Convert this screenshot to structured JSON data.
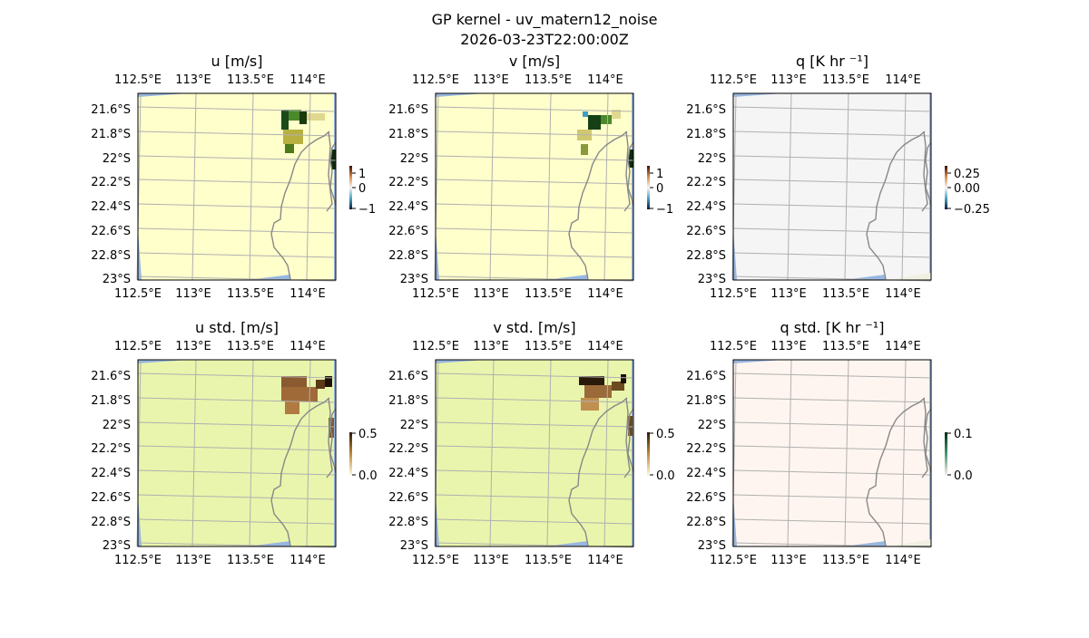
{
  "figure": {
    "title_line1": "GP kernel - uv_matern12_noise",
    "title_line2": "2026-03-23T22:00:00Z"
  },
  "chart_data": [
    {
      "type": "heatmap",
      "title": "u [m/s]",
      "panel": "u",
      "xticks": [
        "112.5°E",
        "113°E",
        "113.5°E",
        "114°E"
      ],
      "yticks": [
        "21.6°S",
        "21.8°S",
        "22°S",
        "22.2°S",
        "22.4°S",
        "22.6°S",
        "22.8°S",
        "23°S"
      ],
      "colorbar": {
        "ticks": [
          "1",
          "0",
          "−1"
        ],
        "range": [
          -1,
          1
        ]
      },
      "background_color": "#ffffcc",
      "ylim": [
        -23.0,
        -21.5
      ],
      "xlim": [
        112.4,
        114.2
      ]
    },
    {
      "type": "heatmap",
      "title": "v [m/s]",
      "panel": "v",
      "xticks": [
        "112.5°E",
        "113°E",
        "113.5°E",
        "114°E"
      ],
      "yticks": [
        "21.6°S",
        "21.8°S",
        "22°S",
        "22.2°S",
        "22.4°S",
        "22.6°S",
        "22.8°S",
        "23°S"
      ],
      "colorbar": {
        "ticks": [
          "1",
          "0",
          "−1"
        ],
        "range": [
          -1,
          1
        ]
      },
      "background_color": "#ffffcc",
      "ylim": [
        -23.0,
        -21.5
      ],
      "xlim": [
        112.4,
        114.2
      ]
    },
    {
      "type": "heatmap",
      "title": "q [K hr ⁻¹]",
      "panel": "q",
      "xticks": [
        "112.5°E",
        "113°E",
        "113.5°E",
        "114°E"
      ],
      "yticks": [
        "21.6°S",
        "21.8°S",
        "22°S",
        "22.2°S",
        "22.4°S",
        "22.6°S",
        "22.8°S",
        "23°S"
      ],
      "colorbar": {
        "ticks": [
          "0.25",
          "0.00",
          "−0.25"
        ],
        "range": [
          -0.25,
          0.25
        ]
      },
      "background_color": "#f5f5f5",
      "ylim": [
        -23.0,
        -21.5
      ],
      "xlim": [
        112.4,
        114.2
      ]
    },
    {
      "type": "heatmap",
      "title": "u std. [m/s]",
      "panel": "u_std",
      "xticks": [
        "112.5°E",
        "113°E",
        "113.5°E",
        "114°E"
      ],
      "yticks": [
        "21.6°S",
        "21.8°S",
        "22°S",
        "22.2°S",
        "22.4°S",
        "22.6°S",
        "22.8°S",
        "23°S"
      ],
      "colorbar": {
        "ticks": [
          "0.5",
          "0.0"
        ],
        "range": [
          0,
          0.5
        ]
      },
      "background_color": "#e9f5ac",
      "ylim": [
        -23.0,
        -21.5
      ],
      "xlim": [
        112.4,
        114.2
      ]
    },
    {
      "type": "heatmap",
      "title": "v std. [m/s]",
      "panel": "v_std",
      "xticks": [
        "112.5°E",
        "113°E",
        "113.5°E",
        "114°E"
      ],
      "yticks": [
        "21.6°S",
        "21.8°S",
        "22°S",
        "22.2°S",
        "22.4°S",
        "22.6°S",
        "22.8°S",
        "23°S"
      ],
      "colorbar": {
        "ticks": [
          "0.5",
          "0.0"
        ],
        "range": [
          0,
          0.5
        ]
      },
      "background_color": "#e9f5ac",
      "ylim": [
        -23.0,
        -21.5
      ],
      "xlim": [
        112.4,
        114.2
      ]
    },
    {
      "type": "heatmap",
      "title": "q std. [K hr ⁻¹]",
      "panel": "q_std",
      "xticks": [
        "112.5°E",
        "113°E",
        "113.5°E",
        "114°E"
      ],
      "yticks": [
        "21.6°S",
        "21.8°S",
        "22°S",
        "22.2°S",
        "22.4°S",
        "22.6°S",
        "22.8°S",
        "23°S"
      ],
      "colorbar": {
        "ticks": [
          "0.1",
          "0.0"
        ],
        "range": [
          0,
          0.1
        ]
      },
      "background_color": "#fff5f0",
      "ylim": [
        -23.0,
        -21.5
      ],
      "xlim": [
        112.4,
        114.2
      ]
    }
  ],
  "colors": {
    "ocean": "#97b6e1",
    "coastline": "#888888",
    "gridline": "#b0b0b0",
    "land_strip": "#f0f0e0"
  }
}
